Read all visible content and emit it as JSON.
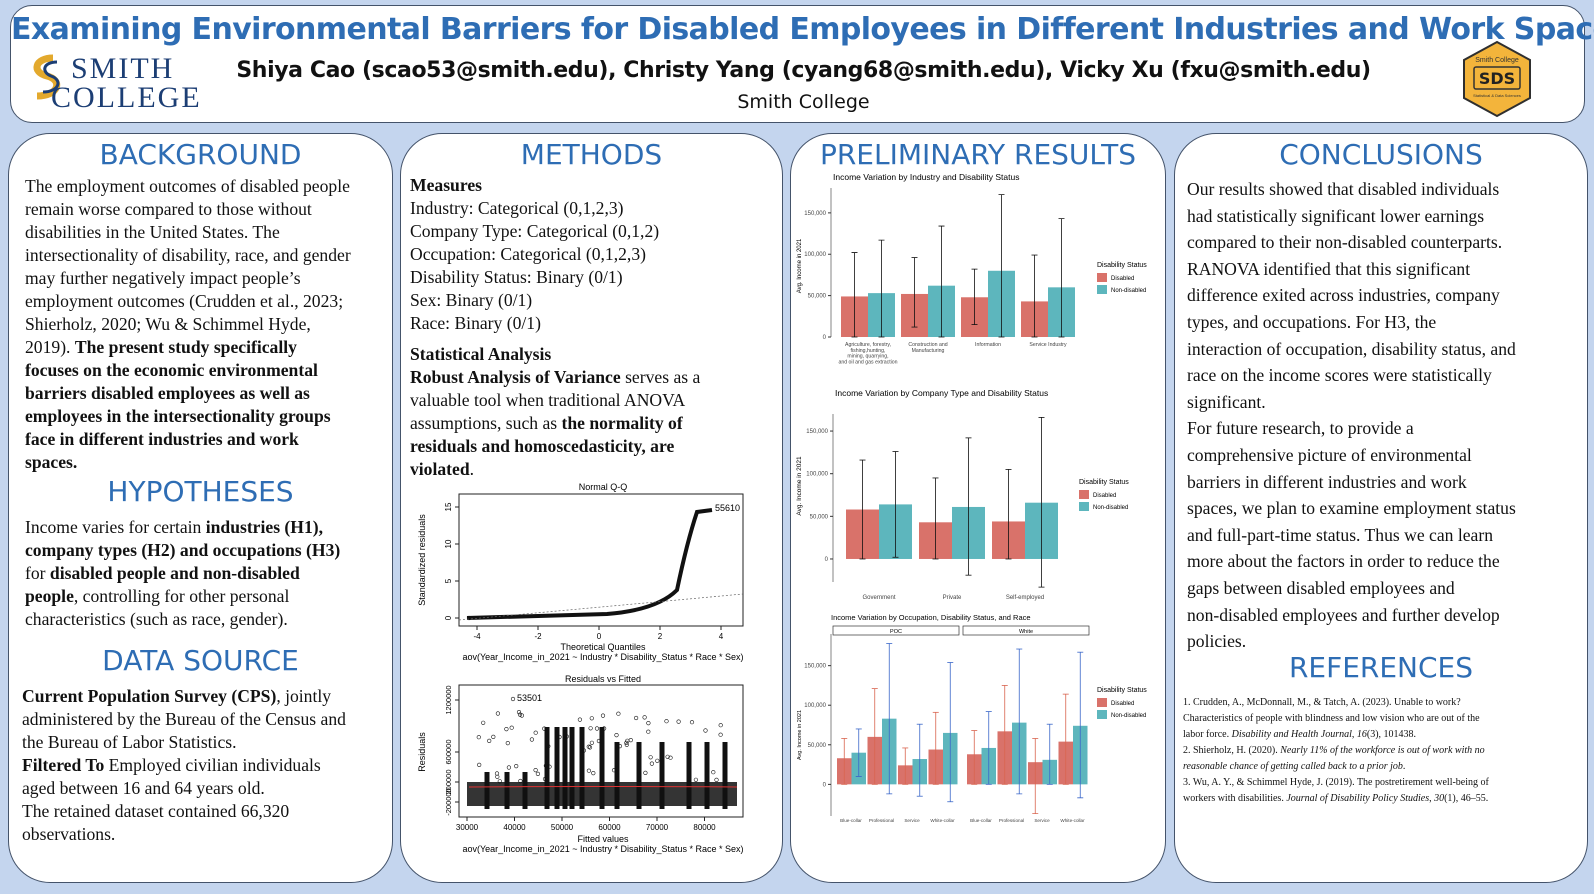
{
  "header": {
    "title": "Examining Environmental Barriers for Disabled Employees in Different Industries and Work Spaces",
    "authors": "Shiya Cao (scao53@smith.edu), Christy Yang (cyang68@smith.edu), Vicky Xu (fxu@smith.edu)",
    "institution": "Smith College",
    "logo_left": {
      "line1": "SMITH",
      "line2": "COLLEGE"
    },
    "logo_right": {
      "top": "Smith College",
      "mid": "SDS",
      "bottom": "Statistical & Data Sciences"
    }
  },
  "background": {
    "heading": "BACKGROUND",
    "lines": [
      "The employment outcomes of disabled people",
      "remain worse compared to those without",
      "disabilities in the United States. The",
      "intersectionality of disability, race, and gender",
      "may further negatively impact people’s",
      "employment outcomes (Crudden et al., 2023;",
      "Shierholz, 2020; Wu & Schimmel Hyde,"
    ],
    "line8_normal": "2019). ",
    "line8_bold": "The present study specifically",
    "bold_lines": [
      "focuses on the economic environmental",
      "barriers disabled employees as well as",
      "employees in the intersectionality groups",
      "face in different industries and work",
      "spaces."
    ]
  },
  "hypotheses": {
    "heading": "HYPOTHESES",
    "l1a": "Income varies for certain ",
    "l1b": "industries (H1),",
    "l2": "company types (H2) and occupations (H3)",
    "l3a": "for ",
    "l3b": "disabled people and non-disabled",
    "l4a": "people",
    "l4b": ", controlling for other personal",
    "l5": "characteristics (such as race, gender)."
  },
  "data_source": {
    "heading": "DATA SOURCE",
    "l1a": "Current Population Survey (CPS)",
    "l1b": ", jointly",
    "l2": "administered by the Bureau of the Census and",
    "l3": "the Bureau of Labor Statistics.",
    "l4a": "Filtered To",
    "l4b": " Employed civilian individuals",
    "l5": "aged between 16 and 64 years old.",
    "l6": "The retained dataset contained 66,320",
    "l7": "observations."
  },
  "methods": {
    "heading": "METHODS",
    "measures_title": "Measures",
    "measures": [
      "Industry: Categorical (0,1,2,3)",
      "Company Type: Categorical (0,1,2)",
      "Occupation: Categorical (0,1,2,3)",
      "Disability Status: Binary (0/1)",
      "Sex: Binary (0/1)",
      "Race: Binary (0/1)"
    ],
    "stat_title": "Statistical Analysis",
    "s1a": "Robust Analysis of Variance",
    "s1b": " serves as a",
    "s2": "valuable tool when traditional ANOVA",
    "s3a": "assumptions, such as ",
    "s3b": "the normality of",
    "s4": "residuals and homoscedasticity, are",
    "s5a": "violated",
    "s5b": ".",
    "qq": {
      "title": "Normal Q-Q",
      "xlabel": "Theoretical Quantiles",
      "ylabel": "Standardized residuals",
      "caption": "aov(Year_Income_in_2021 ~ Industry * Disability_Status * Race * Sex)",
      "point_label": "55610",
      "xticks": [
        "-4",
        "-2",
        "0",
        "2",
        "4"
      ],
      "yticks": [
        "0",
        "5",
        "10",
        "15"
      ]
    },
    "rvf": {
      "title": "Residuals vs Fitted",
      "xlabel": "Fitted values",
      "ylabel": "Residuals",
      "caption": "aov(Year_Income_in_2021 ~ Industry * Disability_Status * Race * Sex)",
      "point_label": "53501",
      "xticks": [
        "30000",
        "40000",
        "50000",
        "60000",
        "70000",
        "80000"
      ],
      "yticks": [
        "-200000",
        "200000",
        "600000",
        "1200000"
      ]
    }
  },
  "results": {
    "heading": "PRELIMINARY RESULTS",
    "legend_title": "Disability Status",
    "legend": [
      "Disabled",
      "Non-disabled"
    ],
    "colors": {
      "disabled": "#d9726a",
      "nondisabled": "#5db6bd"
    },
    "ylabel": "Avg. Income in 2021",
    "yticks": [
      "0",
      "50,000",
      "100,000",
      "150,000"
    ]
  },
  "chart_data": [
    {
      "type": "bar",
      "title": "Income Variation by Industry and Disability Status",
      "ylabel": "Avg. Income in 2021",
      "ylim": [
        0,
        180000
      ],
      "categories": [
        "Agriculture, forestry, fishing,hunting, mining, quarrying, and oil and gas extraction",
        "Construction and Manufacturing",
        "Information",
        "Service Industry"
      ],
      "series": [
        {
          "name": "Disabled",
          "values": [
            49000,
            52000,
            48000,
            43000
          ],
          "err_low": [
            0,
            12000,
            15000,
            0
          ],
          "err_high": [
            102000,
            96000,
            82000,
            99000
          ]
        },
        {
          "name": "Non-disabled",
          "values": [
            53000,
            62000,
            80000,
            60000
          ],
          "err_low": [
            0,
            0,
            0,
            0
          ],
          "err_high": [
            117000,
            134000,
            172000,
            143000
          ]
        }
      ]
    },
    {
      "type": "bar",
      "title": "Income Variation by Company Type and Disability Status",
      "ylabel": "Avg. Income in 2021",
      "ylim": [
        0,
        170000
      ],
      "categories": [
        "Government",
        "Private",
        "Self-employed"
      ],
      "series": [
        {
          "name": "Disabled",
          "values": [
            58000,
            43000,
            44000
          ],
          "err_low": [
            0,
            0,
            0
          ],
          "err_high": [
            116000,
            95000,
            105000
          ]
        },
        {
          "name": "Non-disabled",
          "values": [
            64000,
            61000,
            66000
          ],
          "err_low": [
            2000,
            -19000,
            -33000
          ],
          "err_high": [
            126000,
            142000,
            166000
          ]
        }
      ]
    },
    {
      "type": "bar",
      "title": "Income Variation by Occupation, Disability Status, and Race",
      "ylabel": "Avg. Income in 2021",
      "ylim": [
        -40000,
        190000
      ],
      "facets": [
        "POC",
        "White"
      ],
      "categories": [
        "Blue-collar",
        "Professional",
        "Service",
        "White-collar"
      ],
      "series": [
        {
          "name": "Disabled",
          "facet_values": [
            [
              33000,
              60000,
              24000,
              44000
            ],
            [
              38000,
              67000,
              28000,
              54000
            ]
          ],
          "err_low": [
            [
              0,
              0,
              0,
              0
            ],
            [
              0,
              0,
              -37000,
              0
            ]
          ],
          "err_high": [
            [
              58000,
              121000,
              46000,
              91000
            ],
            [
              68000,
              125000,
              58000,
              114000
            ]
          ]
        },
        {
          "name": "Non-disabled",
          "facet_values": [
            [
              40000,
              83000,
              32000,
              65000
            ],
            [
              46000,
              78000,
              31000,
              74000
            ]
          ],
          "err_low": [
            [
              10000,
              -12000,
              -15000,
              -22000
            ],
            [
              0,
              -12000,
              0,
              -17000
            ]
          ],
          "err_high": [
            [
              70000,
              178000,
              76000,
              154000
            ],
            [
              92000,
              171000,
              76000,
              167000
            ]
          ]
        }
      ]
    }
  ],
  "conclusions": {
    "heading": "CONCLUSIONS",
    "lines": [
      "Our results showed that disabled individuals",
      "had statistically significant lower earnings",
      "compared to their non-disabled counterparts.",
      "RANOVA identified that this significant",
      "difference exited across industries, company",
      "types, and  occupations. For H3, the",
      "interaction of occupation, disability status, and",
      "race on the income scores were statistically",
      "significant.",
      "For future research,  to provide a",
      "comprehensive picture of environmental",
      "barriers in different industries and work",
      "spaces, we plan to examine employment status",
      "and full-part-time status. Thus we can learn",
      "more about the factors in order to reduce the",
      "gaps between disabled employees and",
      "non-disabled employees and further develop",
      "policies."
    ]
  },
  "references": {
    "heading": "REFERENCES",
    "r1a": "1. Crudden, A., McDonnall, M., & Tatch, A. (2023). Unable to work?",
    "r1b": "Characteristics of people with blindness and low vision who are out of the",
    "r1c": "labor force. ",
    "r1d": "Disability and Health Journal",
    "r1e": ", ",
    "r1f": "16",
    "r1g": "(3), 101438.",
    "r2a": "2. Shierholz, H. (2020). ",
    "r2b": "Nearly 11% of the workforce is out of work with no",
    "r2c": "reasonable chance of getting called back to a prior job",
    ".": ".",
    "r2d": ".",
    "r3a": "3. Wu, A. Y., & Schimmel Hyde, J. (2019). The postretirement well-being of",
    "r3b": "workers with disabilities. ",
    "r3c": "Journal of Disability Policy Studies",
    "r3d": ", ",
    "r3e": "30",
    "r3f": "(1), 46–55."
  }
}
